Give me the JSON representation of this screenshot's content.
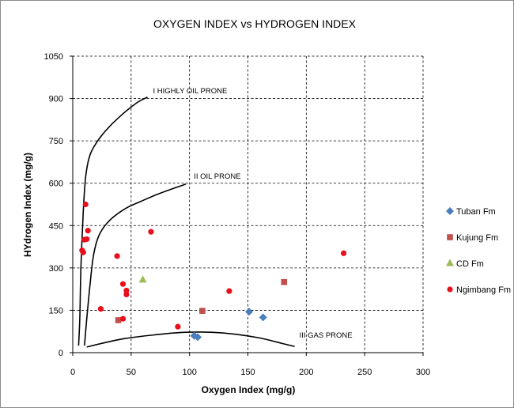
{
  "chart_data": {
    "type": "scatter",
    "title": "OXYGEN INDEX vs HYDROGEN INDEX",
    "xlabel": "Oxygen Index (mg/g)",
    "ylabel": "HYdrogen Index (mg/g)",
    "xlim": [
      0,
      300
    ],
    "ylim": [
      0,
      1050
    ],
    "xticks": [
      "0",
      "50",
      "100",
      "150",
      "200",
      "250",
      "300"
    ],
    "yticks": [
      "0",
      "150",
      "300",
      "450",
      "600",
      "750",
      "900",
      "1050"
    ],
    "grid": true,
    "legend_position": "right",
    "series": [
      {
        "name": "Tuban Fm",
        "marker": "diamond",
        "color": "#4a7ebb",
        "points": [
          [
            104,
            60
          ],
          [
            107,
            55
          ],
          [
            151,
            145
          ],
          [
            163,
            125
          ]
        ]
      },
      {
        "name": "Kujung Fm",
        "marker": "square",
        "color": "#c0504d",
        "points": [
          [
            39,
            115
          ],
          [
            111,
            148
          ],
          [
            181,
            250
          ]
        ]
      },
      {
        "name": "CD Fm",
        "marker": "triangle",
        "color": "#9bbb59",
        "points": [
          [
            60,
            258
          ]
        ]
      },
      {
        "name": "Ngimbang Fm",
        "marker": "circle",
        "color": "#e8101c",
        "points": [
          [
            11,
            525
          ],
          [
            13,
            432
          ],
          [
            10,
            400
          ],
          [
            12,
            402
          ],
          [
            8,
            362
          ],
          [
            9,
            355
          ],
          [
            38,
            342
          ],
          [
            67,
            428
          ],
          [
            43,
            243
          ],
          [
            46,
            220
          ],
          [
            46,
            206
          ],
          [
            24,
            155
          ],
          [
            43,
            120
          ],
          [
            90,
            92
          ],
          [
            134,
            218
          ],
          [
            232,
            352
          ]
        ]
      }
    ],
    "curves": [
      {
        "label": "I  HIGHLY OIL PRONE",
        "points": [
          [
            5,
            25
          ],
          [
            6,
            120
          ],
          [
            7,
            300
          ],
          [
            9,
            500
          ],
          [
            11,
            620
          ],
          [
            14,
            690
          ],
          [
            19,
            735
          ],
          [
            28,
            785
          ],
          [
            40,
            835
          ],
          [
            55,
            885
          ],
          [
            64,
            905
          ]
        ]
      },
      {
        "label": "II  OIL PRONE",
        "points": [
          [
            10,
            25
          ],
          [
            12,
            120
          ],
          [
            15,
            250
          ],
          [
            18,
            350
          ],
          [
            23,
            420
          ],
          [
            32,
            470
          ],
          [
            45,
            510
          ],
          [
            58,
            535
          ],
          [
            72,
            560
          ],
          [
            85,
            580
          ],
          [
            97,
            597
          ]
        ]
      },
      {
        "label": "III GAS PRONE",
        "points": [
          [
            12,
            20
          ],
          [
            25,
            33
          ],
          [
            45,
            50
          ],
          [
            70,
            63
          ],
          [
            95,
            72
          ],
          [
            120,
            72
          ],
          [
            140,
            65
          ],
          [
            160,
            52
          ],
          [
            180,
            32
          ],
          [
            190,
            22
          ]
        ]
      }
    ]
  }
}
